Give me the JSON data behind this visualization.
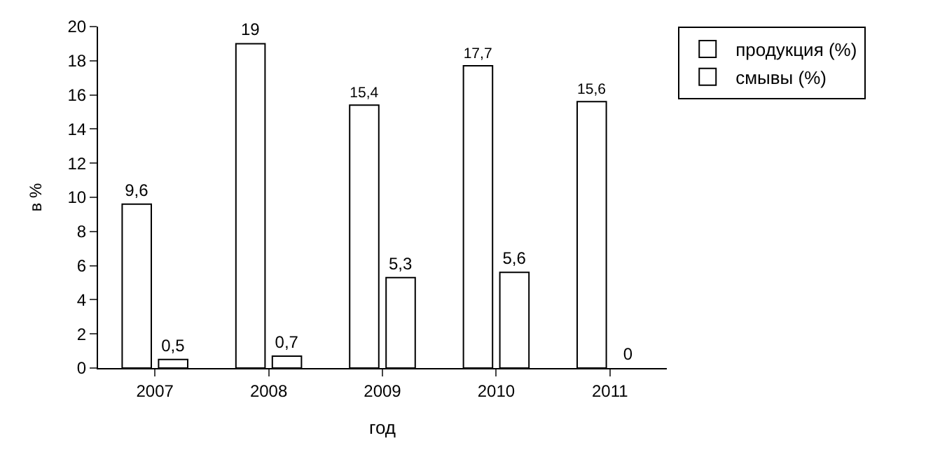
{
  "chart_data": {
    "type": "bar",
    "xlabel": "год",
    "ylabel": "в %",
    "categories": [
      "2007",
      "2008",
      "2009",
      "2010",
      "2011"
    ],
    "series": [
      {
        "name": "продукция (%)",
        "color": "#ffffff",
        "values": [
          9.6,
          19,
          15.4,
          17.7,
          15.6
        ],
        "value_labels": [
          "9,6",
          "19",
          "15,4",
          "17,7",
          "15,6"
        ]
      },
      {
        "name": "смывы (%)",
        "color": "#ffffff",
        "values": [
          0.5,
          0.7,
          5.3,
          5.6,
          0
        ],
        "value_labels": [
          "0,5",
          "0,7",
          "5,3",
          "5,6",
          "0"
        ]
      }
    ],
    "ylim": [
      0,
      20
    ],
    "yticks": [
      0,
      2,
      4,
      6,
      8,
      10,
      12,
      14,
      16,
      18,
      20
    ],
    "grid": false,
    "legend": "top right"
  }
}
